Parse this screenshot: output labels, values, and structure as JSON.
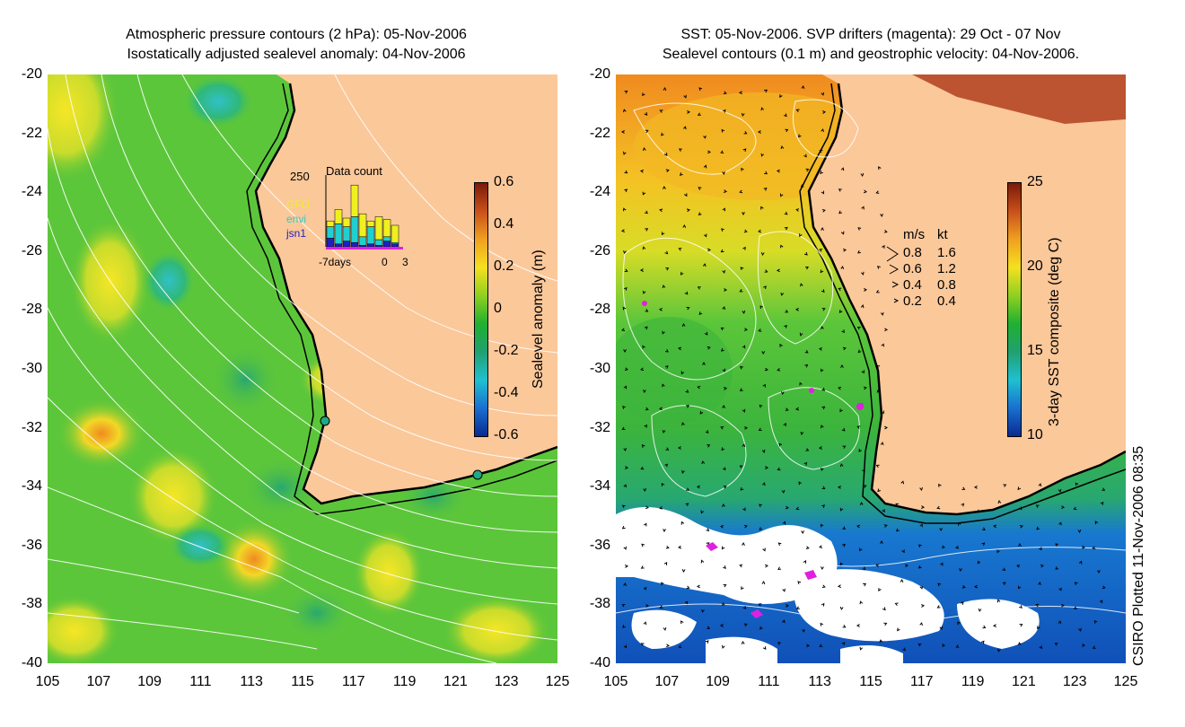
{
  "left_panel": {
    "title_line1": "Atmospheric pressure contours (2 hPa): 05-Nov-2006",
    "title_line2": "Isostatically adjusted sealevel anomaly: 04-Nov-2006",
    "colorbar": {
      "label": "Sealevel anomaly (m)",
      "ticks": [
        "0.6",
        "0.4",
        "0.2",
        "0",
        "-0.2",
        "-0.4",
        "-0.6"
      ],
      "colors": [
        "#7a1a0a",
        "#c8501a",
        "#f0a020",
        "#f5e020",
        "#90d020",
        "#20b030",
        "#20a070",
        "#20c0d0",
        "#1870d0",
        "#0a2a90"
      ]
    },
    "data_count_inset": {
      "title": "Data count",
      "ymax_label": "250",
      "missions": [
        {
          "name": "GFO",
          "color": "#f0f020"
        },
        {
          "name": "envi",
          "color": "#20d0d0"
        },
        {
          "name": "jsn1",
          "color": "#2020c0"
        }
      ],
      "x_labels": [
        "-7days",
        "0",
        "3"
      ],
      "bars": [
        {
          "jsn1": 30,
          "envi": 40,
          "gfo": 20
        },
        {
          "jsn1": 10,
          "envi": 70,
          "gfo": 50
        },
        {
          "jsn1": 20,
          "envi": 50,
          "gfo": 30
        },
        {
          "jsn1": 15,
          "envi": 90,
          "gfo": 110
        },
        {
          "jsn1": 5,
          "envi": 30,
          "gfo": 80
        },
        {
          "jsn1": 10,
          "envi": 60,
          "gfo": 20
        },
        {
          "jsn1": 5,
          "envi": 20,
          "gfo": 80
        },
        {
          "jsn1": 20,
          "envi": 15,
          "gfo": 60
        },
        {
          "jsn1": 10,
          "envi": 5,
          "gfo": 60
        }
      ]
    },
    "station_markers": [
      {
        "lon": 116.0,
        "lat": -31.8
      },
      {
        "lon": 122.0,
        "lat": -33.7
      }
    ]
  },
  "right_panel": {
    "title_line1": "SST: 05-Nov-2006. SVP drifters (magenta): 29 Oct - 07 Nov",
    "title_line2": "Sealevel contours (0.1 m) and geostrophic velocity: 04-Nov-2006.",
    "colorbar": {
      "label": "3-day SST composite (deg C)",
      "ticks": [
        "25",
        "20",
        "15",
        "10"
      ],
      "colors": [
        "#7a1a0a",
        "#c8501a",
        "#f0a020",
        "#f5e020",
        "#90d020",
        "#20b030",
        "#20a070",
        "#20c0d0",
        "#1870d0",
        "#0a2a90"
      ]
    },
    "velocity_legend": {
      "header_ms": "m/s",
      "header_kt": "kt",
      "rows": [
        {
          "ms": "0.8",
          "kt": "1.6"
        },
        {
          "ms": "0.6",
          "kt": "1.2"
        },
        {
          "ms": "0.4",
          "kt": "0.8"
        },
        {
          "ms": "0.2",
          "kt": "0.4"
        }
      ]
    }
  },
  "axes": {
    "y_ticks": [
      "-20",
      "-22",
      "-24",
      "-26",
      "-28",
      "-30",
      "-32",
      "-34",
      "-36",
      "-38",
      "-40"
    ],
    "x_ticks": [
      "105",
      "107",
      "109",
      "111",
      "113",
      "115",
      "117",
      "119",
      "121",
      "123",
      "125"
    ]
  },
  "footer_note": "CSIRO Plotted 11-Nov-2006 08:35",
  "colors": {
    "land": "#fbc89a",
    "ocean_green": "#5cc63a",
    "coastline": "#000000",
    "contour": "#ffffff",
    "drifter": "#e020e0"
  }
}
